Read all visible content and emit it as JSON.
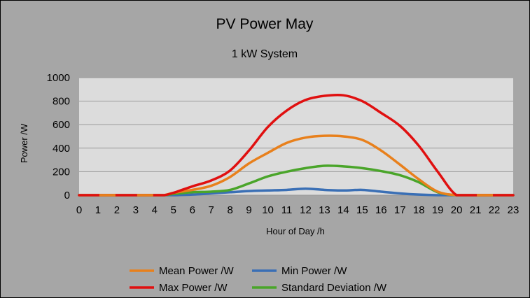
{
  "chart_data": {
    "type": "line",
    "title": "PV Power May",
    "subtitle": "1 kW System",
    "xlabel": "Hour of Day /h",
    "ylabel": "Power /W",
    "xlim": [
      0,
      23
    ],
    "ylim": [
      0,
      1000
    ],
    "y_ticks": [
      0,
      200,
      400,
      600,
      800,
      1000
    ],
    "x_ticks": [
      0,
      1,
      2,
      3,
      4,
      5,
      6,
      7,
      8,
      9,
      10,
      11,
      12,
      13,
      14,
      15,
      16,
      17,
      18,
      19,
      20,
      21,
      22,
      23
    ],
    "grid": "horizontal",
    "legend_position": "bottom",
    "x": [
      0,
      1,
      2,
      3,
      4,
      4.5,
      5,
      6,
      7,
      8,
      9,
      10,
      11,
      12,
      13,
      14,
      15,
      16,
      17,
      18,
      19,
      20,
      21,
      22,
      23
    ],
    "series": [
      {
        "name": "Mean Power /W",
        "color": "#e8801c",
        "values": [
          0,
          0,
          0,
          0,
          0,
          0,
          20,
          45,
          80,
          155,
          270,
          360,
          445,
          490,
          505,
          500,
          470,
          380,
          260,
          135,
          30,
          0,
          0,
          0,
          0
        ]
      },
      {
        "name": "Min Power /W",
        "color": "#3a6fb5",
        "values": [
          0,
          0,
          0,
          0,
          0,
          0,
          0,
          5,
          15,
          25,
          35,
          40,
          45,
          55,
          45,
          40,
          45,
          30,
          15,
          5,
          0,
          0,
          0,
          0,
          0
        ]
      },
      {
        "name": "Max Power /W",
        "color": "#e01010",
        "values": [
          0,
          0,
          0,
          0,
          0,
          0,
          20,
          75,
          125,
          210,
          380,
          580,
          720,
          810,
          845,
          850,
          800,
          700,
          590,
          420,
          200,
          0,
          0,
          0,
          0
        ]
      },
      {
        "name": "Standard Deviation /W",
        "color": "#4aa52a",
        "values": [
          0,
          0,
          0,
          0,
          0,
          0,
          10,
          25,
          30,
          45,
          100,
          160,
          200,
          230,
          250,
          245,
          230,
          205,
          170,
          110,
          25,
          0,
          0,
          0,
          0
        ]
      }
    ],
    "orange_dash_segments": [
      [
        1,
        2
      ],
      [
        3,
        4
      ],
      [
        21,
        22
      ]
    ]
  }
}
